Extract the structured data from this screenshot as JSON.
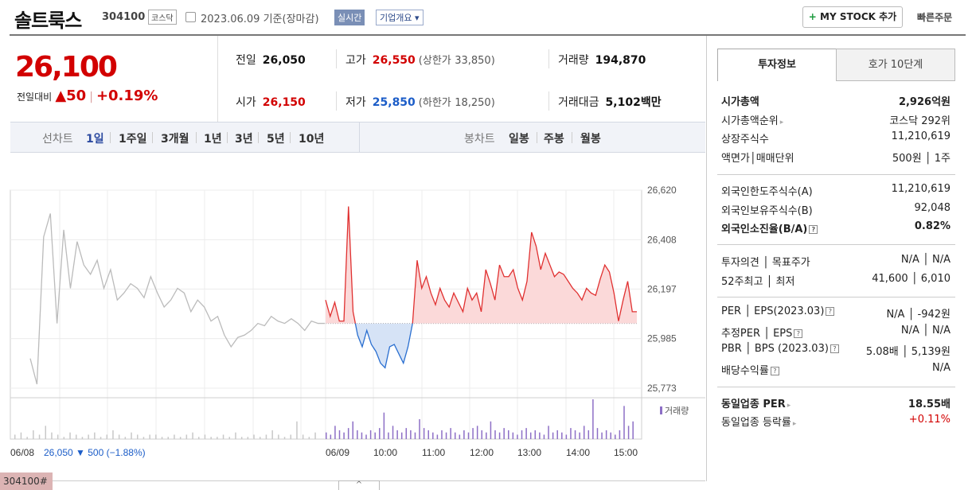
{
  "header": {
    "stock_name": "솔트룩스",
    "stock_code": "304100",
    "market": "코스닥",
    "date": "2023.06.09",
    "basis": "기준(장마감)",
    "realtime": "실시간",
    "company_overview": "기업개요",
    "my_stock": "MY STOCK 추가",
    "my_stock_plus": "+",
    "quick_order": "빠른주문"
  },
  "quote": {
    "price": "26,100",
    "change_label": "전일대비",
    "change_arrow": "▲",
    "change_value": "50",
    "change_rate": "+0.19%",
    "prev_close_label": "전일",
    "prev_close": "26,050",
    "high_label": "고가",
    "high": "26,550",
    "upper_limit_label": "(상한가",
    "upper_limit": "33,850)",
    "volume_label": "거래량",
    "volume": "194,870",
    "open_label": "시가",
    "open": "26,150",
    "low_label": "저가",
    "low": "25,850",
    "lower_limit_label": "(하한가",
    "lower_limit": "18,250)",
    "amount_label": "거래대금",
    "amount": "5,102",
    "amount_unit": "백만"
  },
  "periods": {
    "line_chart_label": "선차트",
    "line_items": [
      "1일",
      "1주일",
      "3개월",
      "1년",
      "3년",
      "5년",
      "10년"
    ],
    "selected": "1일",
    "candle_label": "봉차트",
    "candle_items": [
      "일봉",
      "주봉",
      "월봉"
    ]
  },
  "chart_data": {
    "type": "line",
    "title": "",
    "xlabel": "",
    "ylabel": "",
    "y_ticks": [
      "26,620",
      "26,408",
      "26,197",
      "25,985",
      "25,773"
    ],
    "y_tick_values": [
      26620,
      26408,
      26197,
      25985,
      25773
    ],
    "ylim": [
      25773,
      26620
    ],
    "x_ticks": [
      "06/08",
      "06/09",
      "10:00",
      "11:00",
      "12:00",
      "13:00",
      "14:00",
      "15:00"
    ],
    "baseline": 26050,
    "volume_legend": "거래량",
    "prev_day_summary": {
      "date": "06/08",
      "close": "26,050",
      "arrow": "▼",
      "change": "500",
      "rate": "(−1.88%)"
    },
    "series": [
      {
        "name": "",
        "day": "06/08",
        "color": "#bbbbbb",
        "values": [
          25900,
          25790,
          26420,
          26520,
          26050,
          26450,
          26200,
          26400,
          26300,
          26260,
          26320,
          26200,
          26280,
          26150,
          26180,
          26220,
          26200,
          26160,
          26250,
          26180,
          26120,
          26150,
          26200,
          26180,
          26100,
          26150,
          26120,
          26060,
          26080,
          26000,
          25950,
          25990,
          26000,
          26020,
          26050,
          26040,
          26080,
          26060,
          26050,
          26070,
          26050,
          26020,
          26060,
          26050,
          26050
        ]
      },
      {
        "name": "",
        "day": "06/09",
        "color": "#e03030",
        "values": [
          26150,
          26080,
          26140,
          26060,
          26060,
          26550,
          26100,
          26000,
          25950,
          26020,
          25960,
          25930,
          25880,
          25860,
          25950,
          25960,
          25920,
          25880,
          25950,
          26050,
          26320,
          26200,
          26250,
          26180,
          26130,
          26200,
          26150,
          26120,
          26180,
          26140,
          26100,
          26200,
          26150,
          26180,
          26100,
          26280,
          26220,
          26150,
          26300,
          26250,
          26250,
          26280,
          26200,
          26150,
          26230,
          26440,
          26380,
          26280,
          26350,
          26300,
          26250,
          26270,
          26260,
          26230,
          26200,
          26180,
          26150,
          26200,
          26180,
          26170,
          26240,
          26300,
          26270,
          26180,
          26060,
          26150,
          26230,
          26100,
          26100
        ]
      }
    ],
    "volume_bars": {
      "day1": [
        2,
        3,
        1,
        4,
        2,
        6,
        3,
        2,
        1,
        3,
        2,
        1,
        2,
        3,
        1,
        2,
        4,
        2,
        1,
        3,
        2,
        1,
        2,
        2,
        1,
        1,
        2,
        1,
        2,
        3,
        1,
        2,
        1,
        1,
        2,
        1,
        3,
        1,
        1,
        2,
        1,
        2,
        4,
        2,
        1,
        2,
        8,
        2,
        1,
        3
      ],
      "day2": [
        3,
        2,
        6,
        4,
        3,
        5,
        8,
        4,
        3,
        2,
        4,
        3,
        5,
        12,
        3,
        6,
        4,
        3,
        5,
        4,
        3,
        9,
        5,
        4,
        3,
        2,
        4,
        3,
        5,
        3,
        2,
        4,
        3,
        5,
        6,
        4,
        3,
        8,
        4,
        3,
        5,
        4,
        3,
        2,
        4,
        5,
        3,
        4,
        3,
        2,
        6,
        3,
        4,
        3,
        2,
        5,
        4,
        3,
        6,
        4,
        18,
        5,
        3,
        4,
        3,
        2,
        4,
        15,
        6,
        8
      ]
    }
  },
  "invest_tabs": [
    "투자정보",
    "호가 10단계"
  ],
  "invest": {
    "market_cap_label": "시가총액",
    "market_cap": "2,926억원",
    "cap_rank_label": "시가총액순위",
    "cap_rank": "코스닥 292위",
    "shares_label": "상장주식수",
    "shares": "11,210,619",
    "par_label": "액면가│매매단위",
    "par": "500원 │ 1주",
    "foreign_limit_label": "외국인한도주식수(A)",
    "foreign_limit": "11,210,619",
    "foreign_hold_label": "외국인보유주식수(B)",
    "foreign_hold": "92,048",
    "foreign_rate_label": "외국인소진율(B/A)",
    "foreign_rate": "0.82%",
    "opinion_label": "투자의견 │ 목표주가",
    "opinion": "N/A │ N/A",
    "week52_label": "52주최고 │ 최저",
    "week52": "41,600 │ 6,010",
    "per_label": "PER │ EPS(2023.03)",
    "per": "N/A │ -942원",
    "est_label": "추정PER │ EPS",
    "est": "N/A │ N/A",
    "pbr_label": "PBR │ BPS (2023.03)",
    "pbr": "5.08배 │ 5,139원",
    "div_label": "배당수익률",
    "div": "N/A",
    "sector_per_label": "동일업종 PER",
    "sector_per": "18.55배",
    "sector_rate_label": "동일업종 등락률",
    "sector_rate": "+0.11%"
  },
  "bottom": {
    "tag": "304100#",
    "collapse": "^"
  }
}
